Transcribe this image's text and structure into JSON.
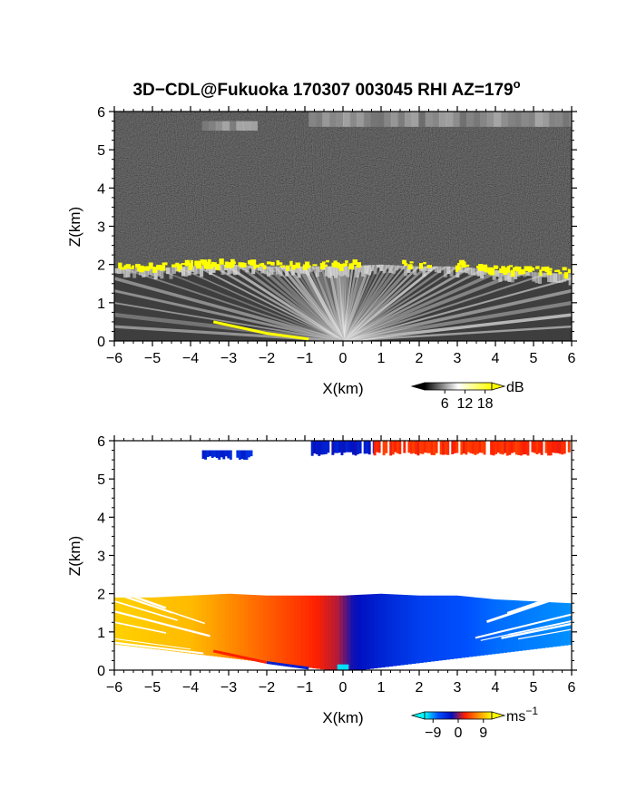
{
  "title": "3D−CDL@Fukuoka 170307 003045 RHI AZ=179",
  "title_degree": "o",
  "chart_data": [
    {
      "type": "heatmap",
      "quantity": "reflectivity",
      "xlabel": "X(km)",
      "ylabel": "Z(km)",
      "xlim": [
        -6,
        6
      ],
      "ylim": [
        0,
        6
      ],
      "xticks": [
        -6,
        -5,
        -4,
        -3,
        -2,
        -1,
        0,
        1,
        2,
        3,
        4,
        5,
        6
      ],
      "yticks": [
        0,
        1,
        2,
        3,
        4,
        5,
        6
      ],
      "colorbar": {
        "unit": "dB",
        "ticks": [
          "6",
          "12",
          "18"
        ],
        "range": [
          0,
          20
        ],
        "colors": [
          "#000000",
          "#ffffff",
          "#ffff00"
        ]
      },
      "cloud_base_km": [
        {
          "x": -6.0,
          "z": 1.9
        },
        {
          "x": -5.0,
          "z": 1.9
        },
        {
          "x": -4.0,
          "z": 1.95
        },
        {
          "x": -3.0,
          "z": 2.0
        },
        {
          "x": -2.0,
          "z": 1.95
        },
        {
          "x": -1.0,
          "z": 1.95
        },
        {
          "x": 0.0,
          "z": 1.95
        },
        {
          "x": 1.0,
          "z": 2.0
        },
        {
          "x": 2.0,
          "z": 1.95
        },
        {
          "x": 3.0,
          "z": 1.95
        },
        {
          "x": 4.0,
          "z": 1.85
        },
        {
          "x": 5.0,
          "z": 1.8
        },
        {
          "x": 6.0,
          "z": 1.75
        }
      ],
      "upper_layer_km": [
        {
          "x0": -3.7,
          "x1": -2.4,
          "z0": 5.5,
          "z1": 5.75
        },
        {
          "x0": -0.9,
          "x1": 6.0,
          "z0": 5.6,
          "z1": 6.0
        }
      ],
      "near_surface_echo_km": [
        {
          "x": -3.4,
          "z": 0.5
        },
        {
          "x": -2.0,
          "z": 0.2
        },
        {
          "x": -0.9,
          "z": 0.05
        }
      ]
    },
    {
      "type": "heatmap",
      "quantity": "doppler velocity",
      "xlabel": "X(km)",
      "ylabel": "Z(km)",
      "xlim": [
        -6,
        6
      ],
      "ylim": [
        0,
        6
      ],
      "xticks": [
        -6,
        -5,
        -4,
        -3,
        -2,
        -1,
        0,
        1,
        2,
        3,
        4,
        5,
        6
      ],
      "yticks": [
        0,
        1,
        2,
        3,
        4,
        5,
        6
      ],
      "colorbar": {
        "unit": "ms",
        "unit_exp": "−1",
        "ticks": [
          "−9",
          "0",
          "9"
        ],
        "range": [
          -12,
          12
        ],
        "colors": [
          "#00ffff",
          "#0050ff",
          "#0010c0",
          "#ff2000",
          "#ff9000",
          "#ffff00"
        ]
      },
      "velocity_ms_by_x_km": [
        {
          "x": -6.0,
          "v": 10
        },
        {
          "x": -4.0,
          "v": 9
        },
        {
          "x": -2.0,
          "v": 5
        },
        {
          "x": -1.0,
          "v": 3
        },
        {
          "x": -0.2,
          "v": 1
        },
        {
          "x": 0.2,
          "v": -2
        },
        {
          "x": 1.0,
          "v": -4
        },
        {
          "x": 2.0,
          "v": -6
        },
        {
          "x": 3.0,
          "v": -7
        },
        {
          "x": 4.0,
          "v": -8
        },
        {
          "x": 6.0,
          "v": -9
        }
      ],
      "upper_layer_velocity_ms": [
        {
          "x0": -3.7,
          "x1": -2.4,
          "v": -4
        },
        {
          "x0": -0.9,
          "x1": 0.8,
          "v": -3
        },
        {
          "x0": 0.8,
          "x1": 6.0,
          "v": 3
        }
      ]
    }
  ]
}
